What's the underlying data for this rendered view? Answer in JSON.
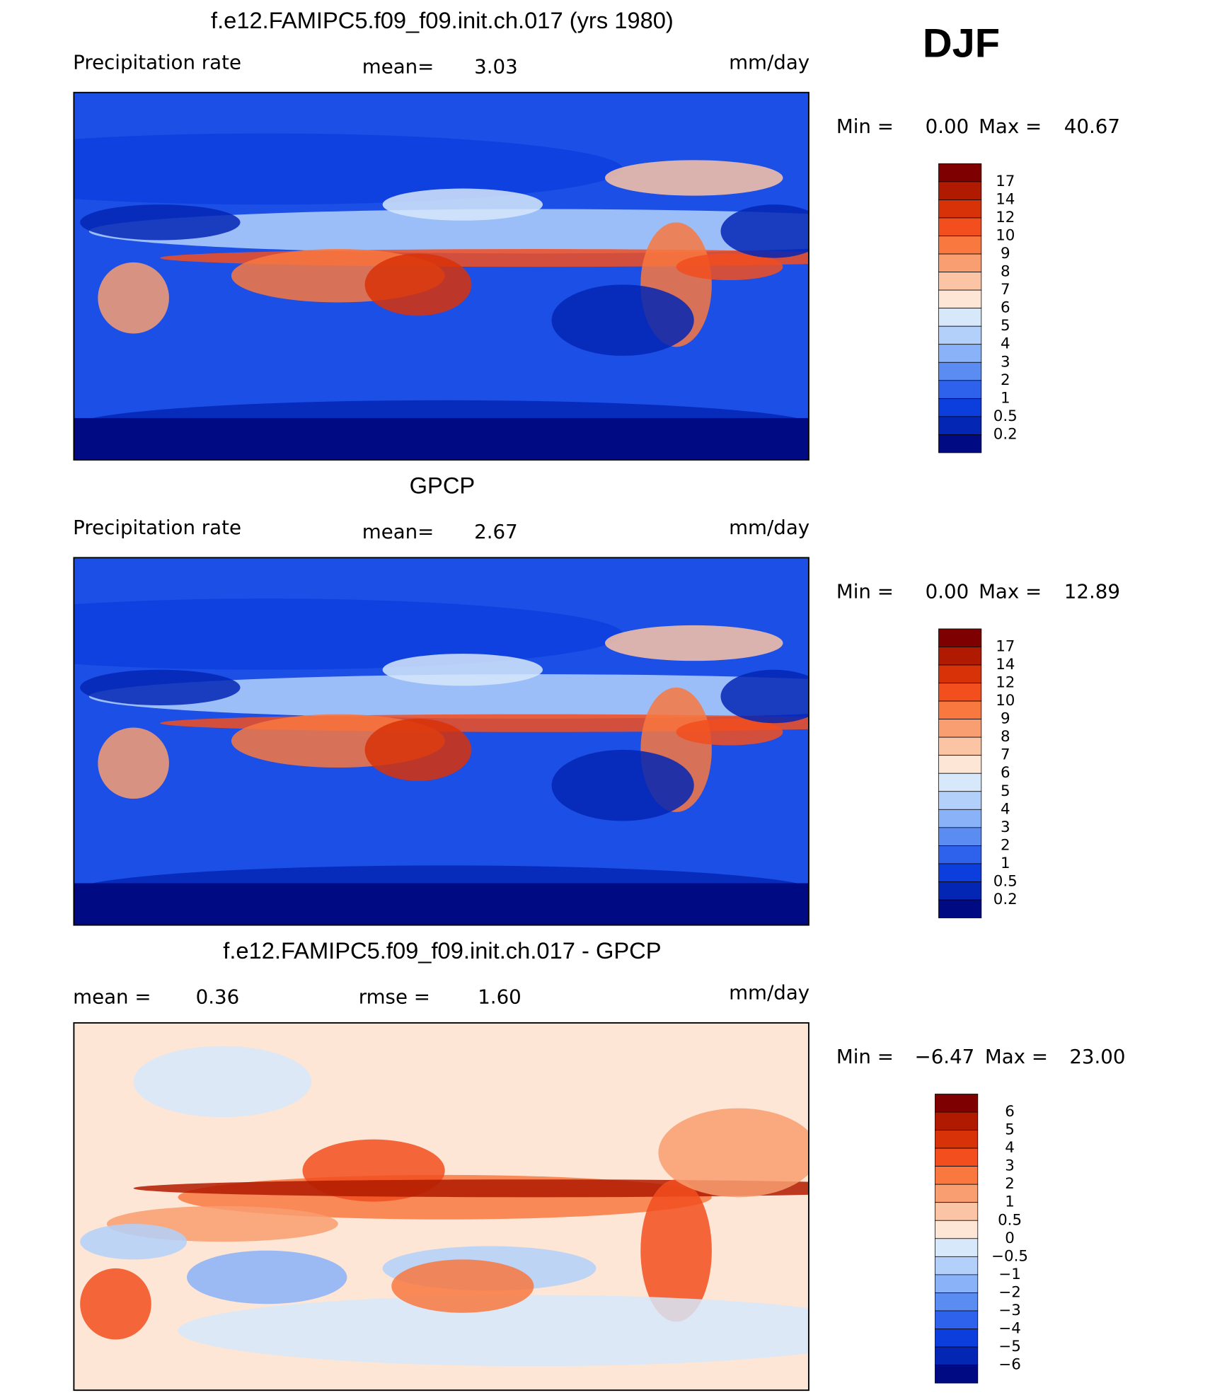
{
  "season": "DJF",
  "panels": [
    {
      "title": "f.e12.FAMIPC5.f09_f09.init.ch.017 (yrs 1980)",
      "field": "Precipitation rate",
      "stats": [
        {
          "label": "mean=",
          "value": "3.03"
        }
      ],
      "units": "mm/day",
      "min_label": "Min =",
      "min": "0.00",
      "max_label": "Max =",
      "max": "40.67",
      "background": "#1c4fe6",
      "colorbar": {
        "levels": [
          "17",
          "14",
          "12",
          "10",
          "9",
          "8",
          "7",
          "6",
          "5",
          "4",
          "3",
          "2",
          "1",
          "0.5",
          "0.2"
        ],
        "colors": [
          "#7f0000",
          "#b01a00",
          "#d83208",
          "#f24e1e",
          "#f8783f",
          "#f99e70",
          "#fbc4a4",
          "#fde6d6",
          "#d6e8fa",
          "#b2d0fa",
          "#8ab2f8",
          "#5a8cf2",
          "#2e62ec",
          "#0c3ede",
          "#0426b4",
          "#000a82"
        ]
      }
    },
    {
      "title": "GPCP",
      "field": "Precipitation rate",
      "stats": [
        {
          "label": "mean=",
          "value": "2.67"
        }
      ],
      "units": "mm/day",
      "min_label": "Min =",
      "min": "0.00",
      "max_label": "Max =",
      "max": "12.89",
      "background": "#1c4fe6",
      "colorbar": {
        "levels": [
          "17",
          "14",
          "12",
          "10",
          "9",
          "8",
          "7",
          "6",
          "5",
          "4",
          "3",
          "2",
          "1",
          "0.5",
          "0.2"
        ],
        "colors": [
          "#7f0000",
          "#b01a00",
          "#d83208",
          "#f24e1e",
          "#f8783f",
          "#f99e70",
          "#fbc4a4",
          "#fde6d6",
          "#d6e8fa",
          "#b2d0fa",
          "#8ab2f8",
          "#5a8cf2",
          "#2e62ec",
          "#0c3ede",
          "#0426b4",
          "#000a82"
        ]
      }
    },
    {
      "title": "f.e12.FAMIPC5.f09_f09.init.ch.017 - GPCP",
      "stats": [
        {
          "label": "mean =",
          "value": "0.36"
        },
        {
          "label": "rmse =",
          "value": "1.60"
        }
      ],
      "units": "mm/day",
      "min_label": "Min =",
      "min": "−6.47",
      "max_label": "Max =",
      "max": "23.00",
      "background": "#fde6d6",
      "colorbar": {
        "levels": [
          "6",
          "5",
          "4",
          "3",
          "2",
          "1",
          "0.5",
          "0",
          "−0.5",
          "−1",
          "−2",
          "−3",
          "−4",
          "−5",
          "−6"
        ],
        "colors": [
          "#7f0000",
          "#b01a00",
          "#d83208",
          "#f24e1e",
          "#f8783f",
          "#f99e70",
          "#fbc4a4",
          "#fde6d6",
          "#d6e8fa",
          "#b2d0fa",
          "#8ab2f8",
          "#5a8cf2",
          "#2e62ec",
          "#0c3ede",
          "#0426b4",
          "#000a82"
        ]
      }
    }
  ]
}
